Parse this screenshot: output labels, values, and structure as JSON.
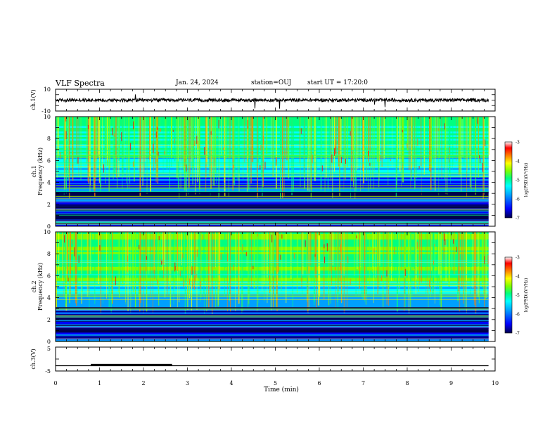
{
  "header": {
    "title": "VLF Spectra",
    "date": "Jan. 24, 2024",
    "station": "station=OUJ",
    "start": "start UT =  17:20:0"
  },
  "chart_data": [
    {
      "type": "line",
      "name": "waveform-ch1",
      "ylabel": "ch.1(V)",
      "ylim": [
        -10,
        10
      ],
      "yticks": [
        "10",
        "-10"
      ],
      "xlim": [
        0,
        10
      ],
      "baseline": 0,
      "noise_amplitude": 1.5
    },
    {
      "type": "heatmap",
      "name": "spectrogram-ch1",
      "ylabel": "ch.1\nFrequency (kHz)",
      "ylim": [
        0,
        10
      ],
      "yticks": [
        "0",
        "2",
        "4",
        "6",
        "8",
        "10"
      ],
      "xlim": [
        0,
        10
      ],
      "colorbar": {
        "label": "log(PSD)(V²/Hz)",
        "range": [
          -7,
          -3
        ],
        "ticks": [
          "-3",
          "-4",
          "-5",
          "-6",
          "-7"
        ]
      },
      "colormap": [
        "#00004c",
        "#0000ff",
        "#00a0ff",
        "#00ffff",
        "#00ff80",
        "#80ff00",
        "#ffff00",
        "#ff8000",
        "#ff0000",
        "#ffffff"
      ]
    },
    {
      "type": "heatmap",
      "name": "spectrogram-ch2",
      "ylabel": "ch.2\nFrequency (kHz)",
      "ylim": [
        0,
        10
      ],
      "yticks": [
        "0",
        "2",
        "4",
        "6",
        "8",
        "10"
      ],
      "xlim": [
        0,
        10
      ],
      "colorbar": {
        "label": "log(PSD)(V²/Hz)",
        "range": [
          -7,
          -3
        ],
        "ticks": [
          "-3",
          "-4",
          "-5",
          "-6",
          "-7"
        ]
      },
      "colormap": [
        "#00004c",
        "#0000ff",
        "#00a0ff",
        "#00ffff",
        "#00ff80",
        "#80ff00",
        "#ffff00",
        "#ff8000",
        "#ff0000",
        "#ffffff"
      ]
    },
    {
      "type": "line",
      "name": "waveform-ch3",
      "ylabel": "ch.3(V)",
      "ylim": [
        -5,
        5
      ],
      "yticks": [
        "5",
        "-5"
      ],
      "xlim": [
        0,
        10
      ],
      "xlabel": "Time (min)",
      "xticks": [
        "0",
        "1",
        "2",
        "3",
        "4",
        "5",
        "6",
        "7",
        "8",
        "9",
        "10"
      ],
      "baseline": -2.8,
      "pulse": {
        "x_start": 0.8,
        "x_end": 2.65,
        "level": -2.4
      }
    }
  ]
}
